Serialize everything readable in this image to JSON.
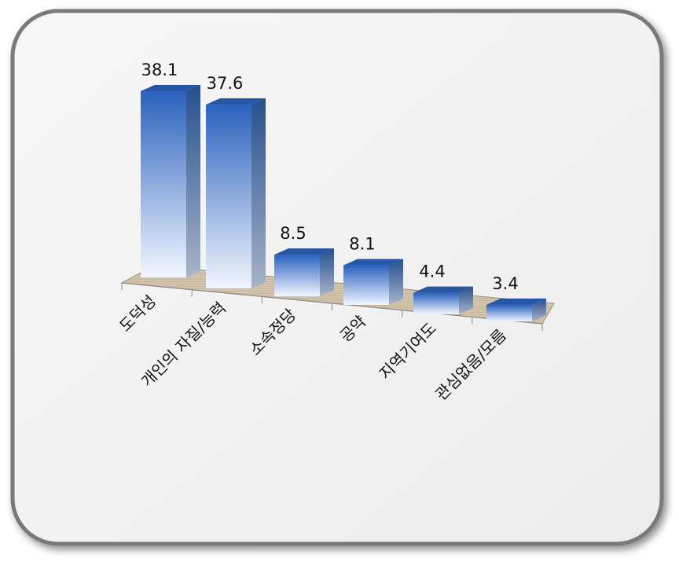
{
  "chart_data": {
    "type": "bar",
    "title": "",
    "xlabel": "",
    "ylabel": "",
    "categories": [
      "도덕성",
      "개인의 자질/능력",
      "소속정당",
      "공약",
      "지역기여도",
      "관심없음/모름"
    ],
    "values": [
      38.1,
      37.6,
      8.5,
      8.1,
      4.4,
      3.4
    ],
    "value_labels": [
      "38.1",
      "37.6",
      "8.5",
      "8.1",
      "4.4",
      "3.4"
    ],
    "ylim": [
      0,
      38.1
    ],
    "grid": false,
    "legend": "none",
    "bar_color_top": "#2a62bd",
    "bar_color_bottom": "#f2f6ff",
    "floor_color": "#cfbfa8"
  }
}
